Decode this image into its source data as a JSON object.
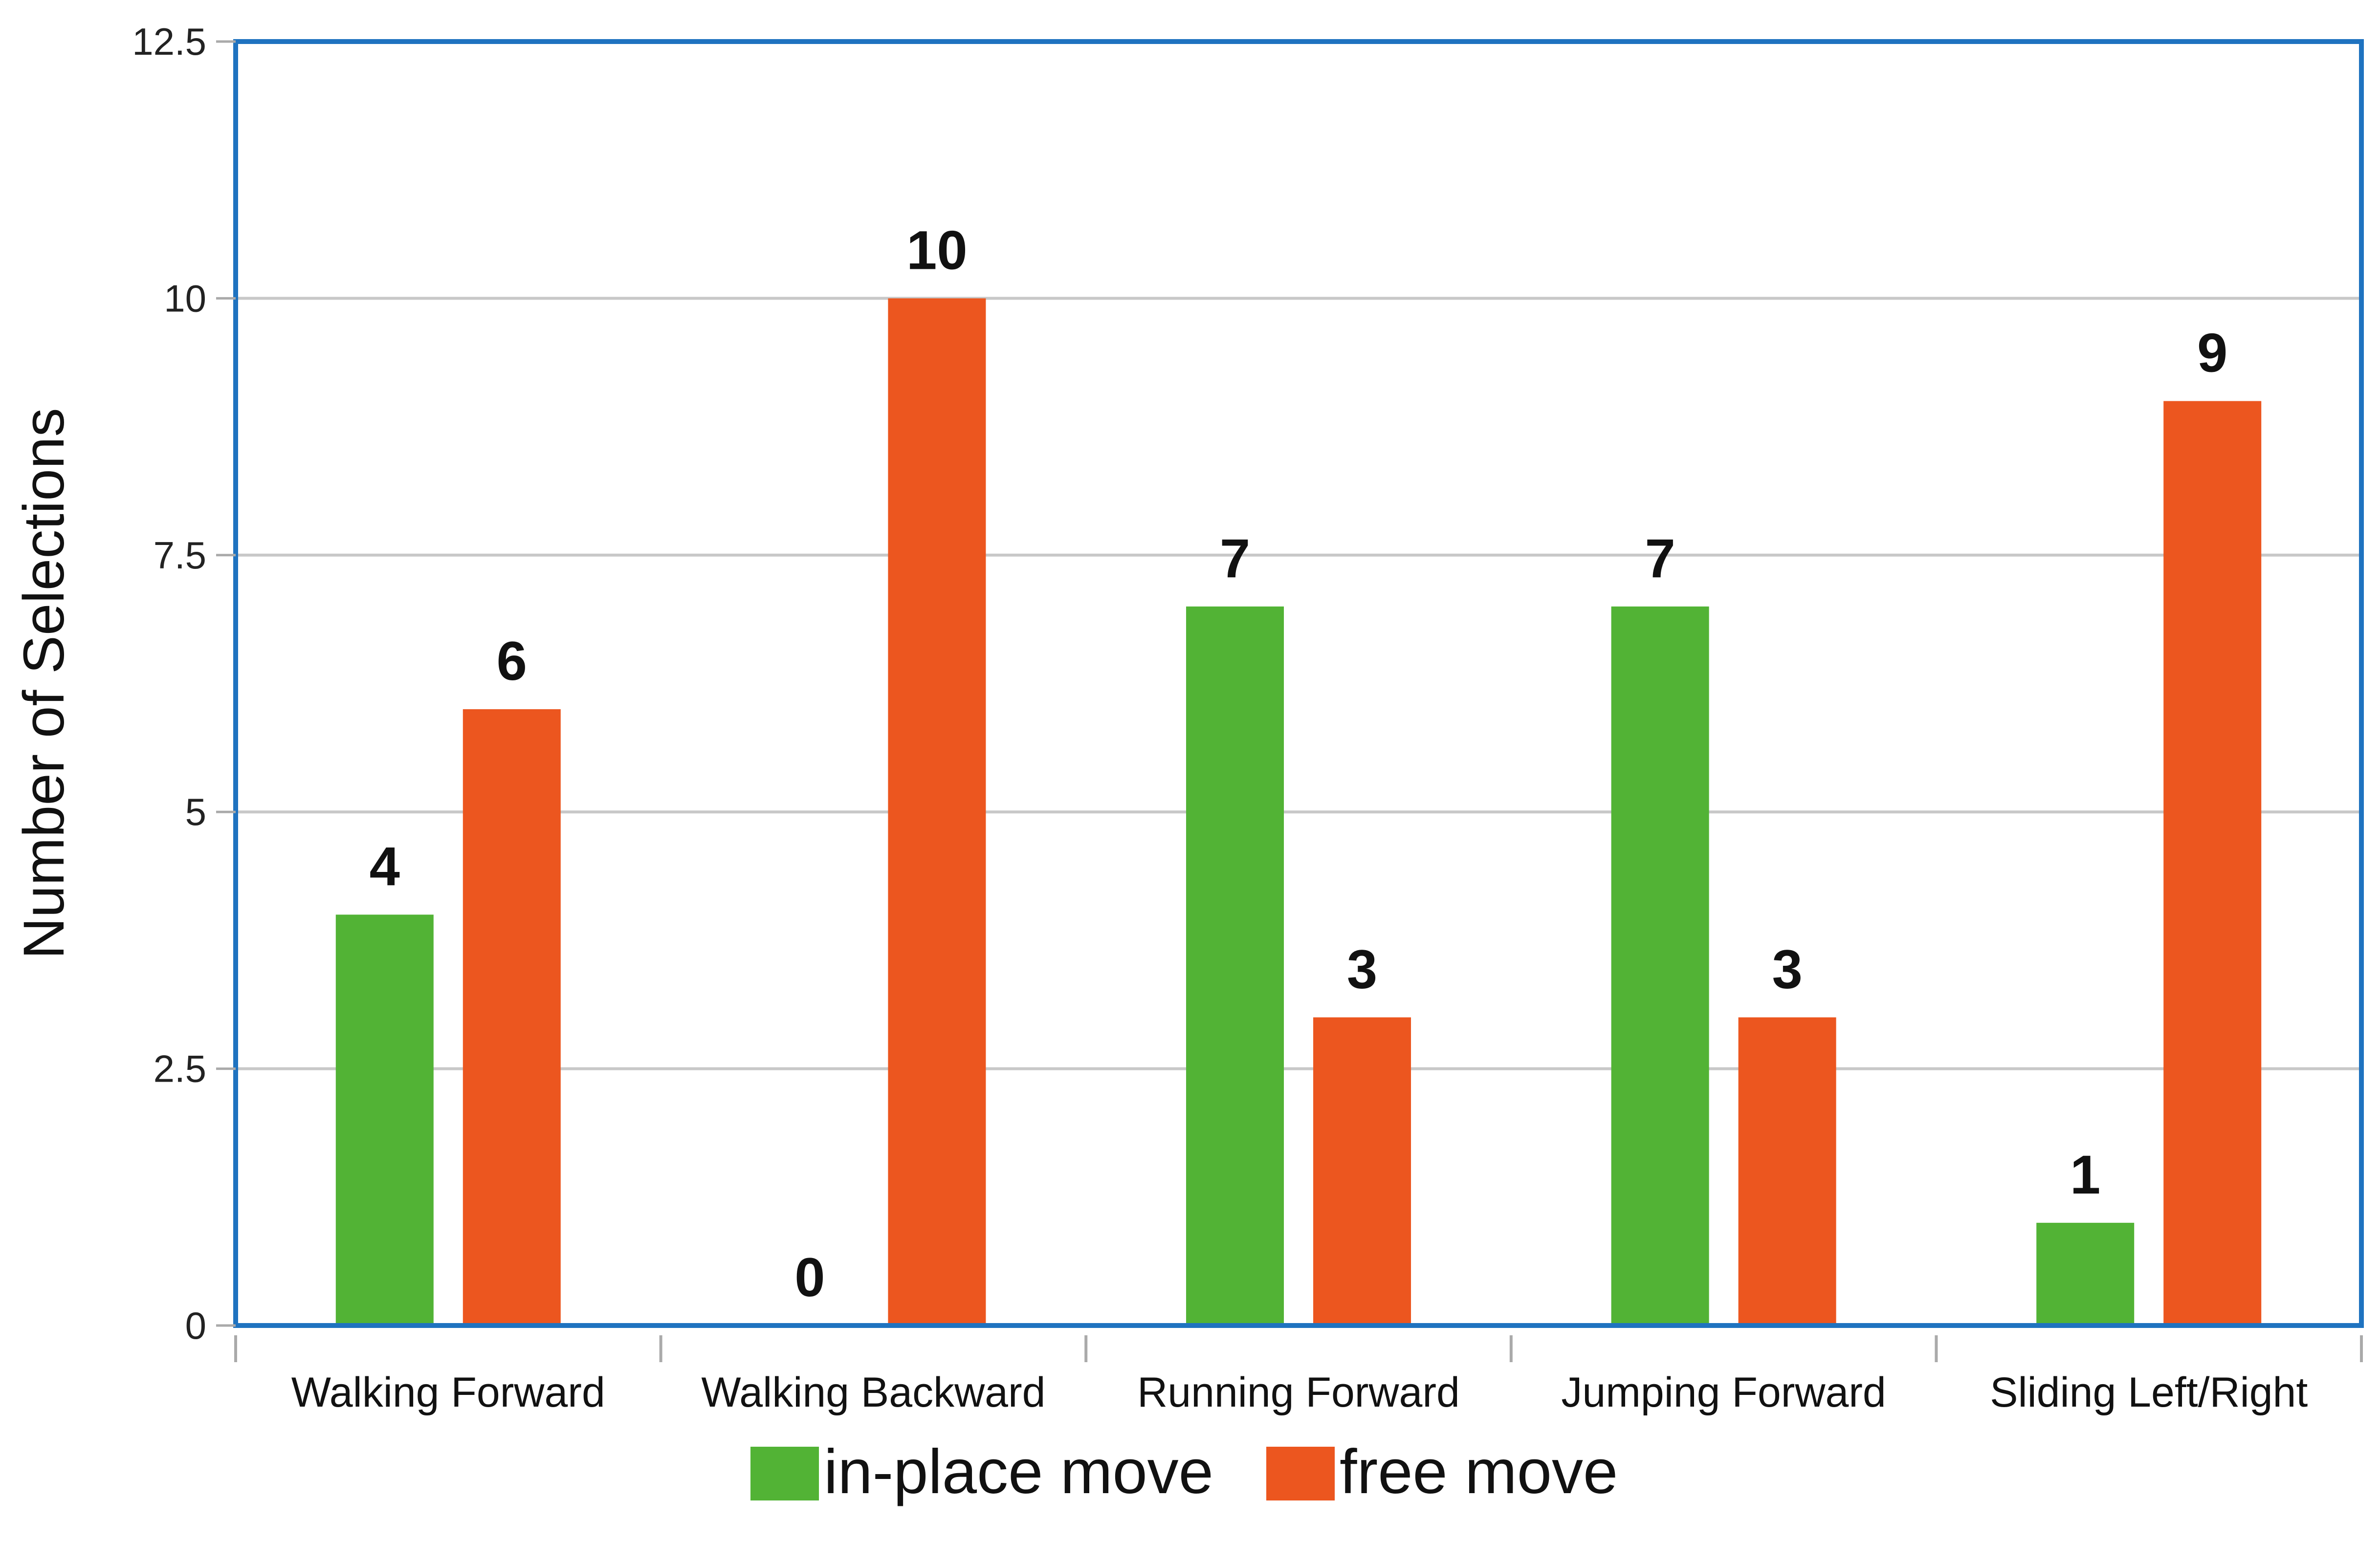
{
  "chart_data": {
    "type": "bar",
    "title": "",
    "xlabel": "",
    "ylabel": "Number of Selections",
    "categories": [
      "Walking Forward",
      "Walking Backward",
      "Running Forward",
      "Jumping Forward",
      "Sliding Left/Right"
    ],
    "series": [
      {
        "name": "in-place move",
        "color": "#52b335",
        "values": [
          4,
          0,
          7,
          7,
          1
        ]
      },
      {
        "name": "free move",
        "color": "#ec561f",
        "values": [
          6,
          10,
          3,
          3,
          9
        ]
      }
    ],
    "ylim": [
      0,
      12.5
    ],
    "yticks": [
      0,
      2.5,
      5,
      7.5,
      10,
      12.5
    ],
    "ytick_labels": [
      "0",
      "2.5",
      "5",
      "7.5",
      "10",
      "12.5"
    ],
    "grid": true,
    "legend_position": "bottom-center",
    "frame_color": "#1f73c0",
    "grid_color": "#c8c8c8"
  }
}
